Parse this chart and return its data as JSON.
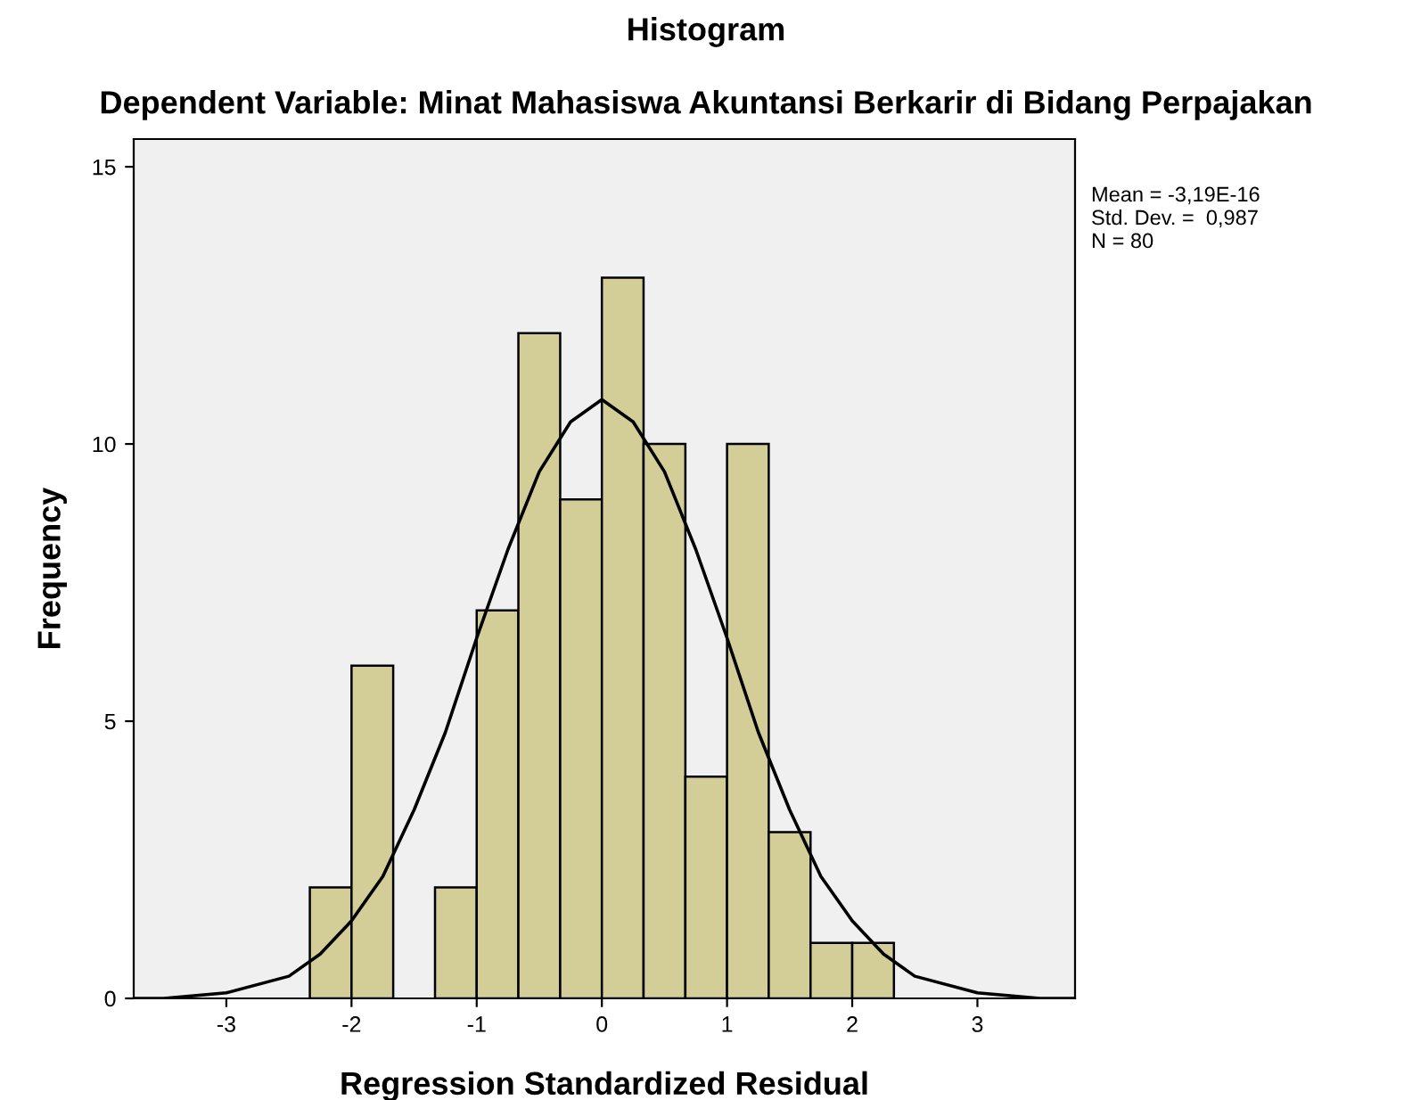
{
  "chart_data": {
    "type": "histogram",
    "title": "Histogram",
    "subtitle": "Dependent Variable: Minat Mahasiswa Akuntansi Berkarir di Bidang Perpajakan",
    "xlabel": "Regression Standardized Residual",
    "ylabel": "Frequency",
    "bins": [
      -2.333,
      -2,
      -1.667,
      -1.333,
      -1,
      -0.667,
      -0.333,
      0,
      0.333,
      0.667,
      1,
      1.333,
      1.667,
      2,
      2.333
    ],
    "values": [
      2,
      6,
      0,
      2,
      7,
      12,
      9,
      13,
      10,
      4,
      10,
      3,
      1,
      1
    ],
    "color": "#d3ce97",
    "series": [
      {
        "type": "line",
        "color": "#000000",
        "x": [
          -3.74,
          -3.5,
          -3,
          -2.5,
          -2.25,
          -2,
          -1.75,
          -1.5,
          -1.25,
          -1,
          -0.75,
          -0.5,
          -0.25,
          0,
          0.25,
          0.5,
          0.75,
          1,
          1.25,
          1.5,
          1.75,
          2,
          2.25,
          2.5,
          3,
          3.5,
          3.78
        ],
        "values": [
          0.0,
          0.0,
          0.1,
          0.4,
          0.8,
          1.4,
          2.2,
          3.4,
          4.8,
          6.5,
          8.1,
          9.5,
          10.4,
          10.8,
          10.4,
          9.5,
          8.1,
          6.5,
          4.8,
          3.4,
          2.2,
          1.4,
          0.8,
          0.4,
          0.1,
          0.0,
          0.0
        ]
      }
    ],
    "xlim": [
      -3.74,
      3.78
    ],
    "ylim": [
      0,
      15.5
    ],
    "xticks": [
      -3,
      -2,
      -1,
      0,
      1,
      2,
      3
    ],
    "yticks": [
      0,
      5,
      10,
      15
    ],
    "grid": false,
    "legend": false,
    "annotations": [
      "Mean = -3,19E-16",
      "Std. Dev. =  0,987",
      "N = 80"
    ]
  }
}
